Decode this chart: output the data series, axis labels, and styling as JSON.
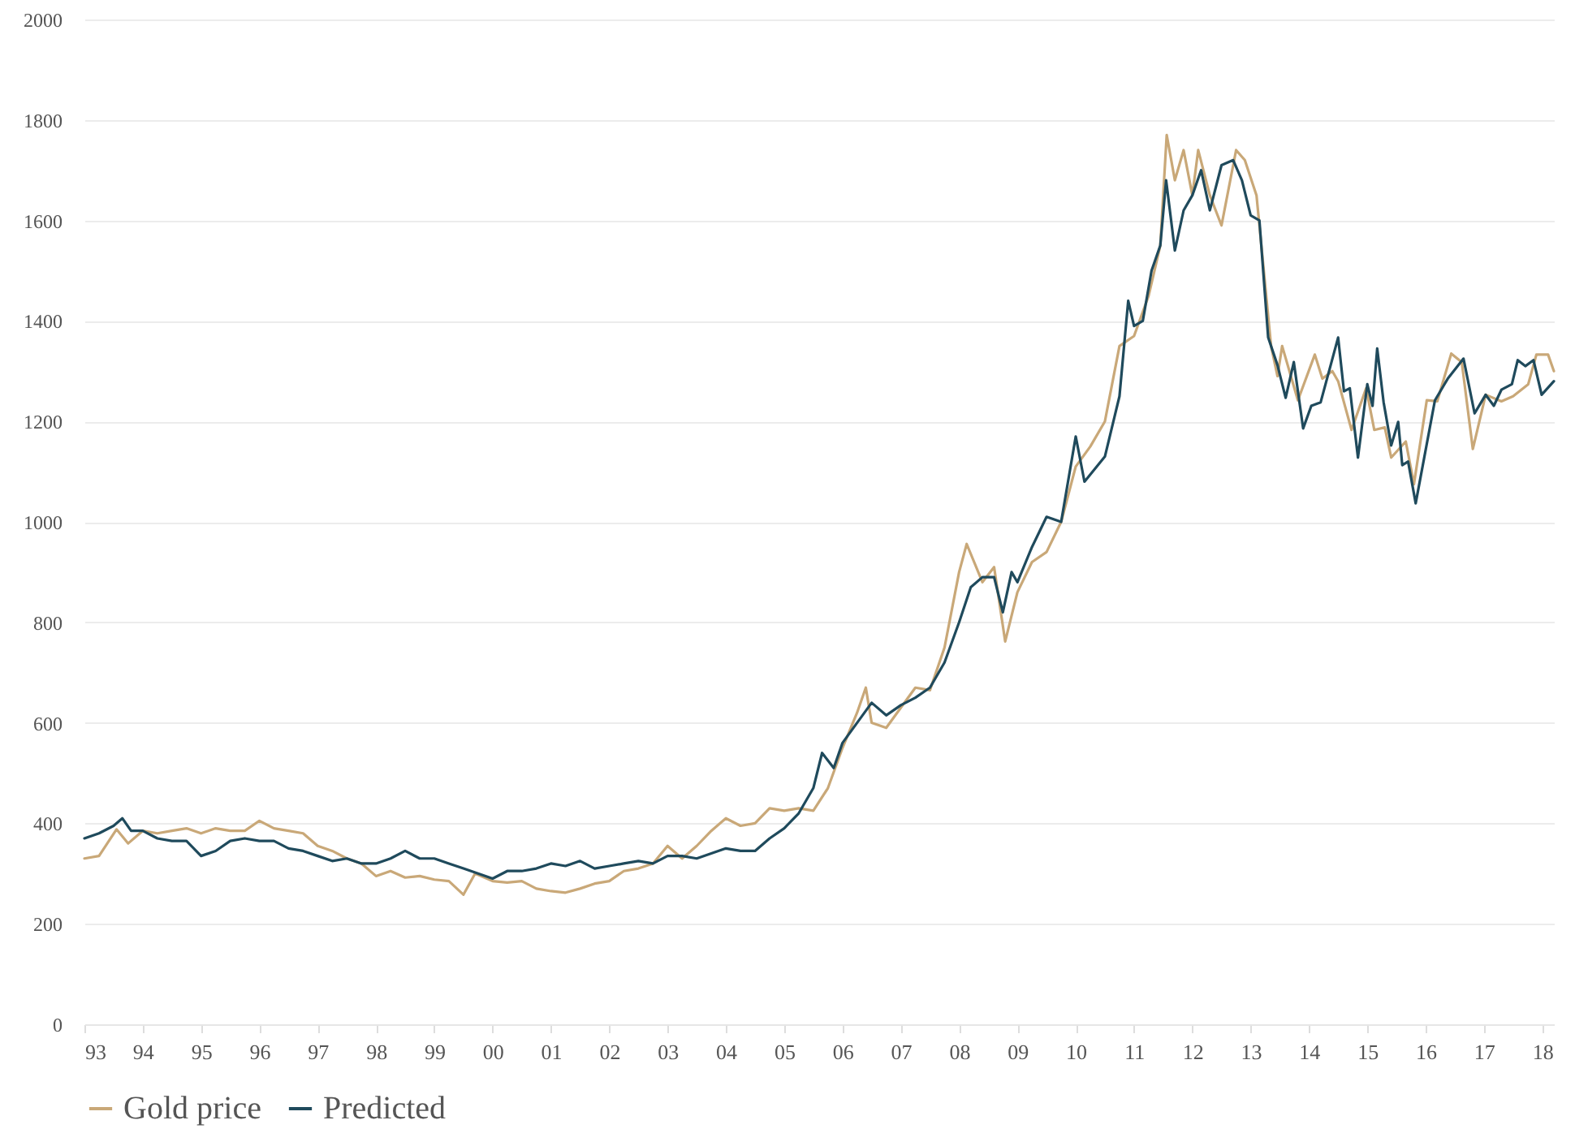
{
  "chart_data": {
    "type": "line",
    "xlim": [
      1993,
      2018.2
    ],
    "xticks": [
      {
        "value": 1993,
        "label": "93"
      },
      {
        "value": 1994,
        "label": "94"
      },
      {
        "value": 1995,
        "label": "95"
      },
      {
        "value": 1996,
        "label": "96"
      },
      {
        "value": 1997,
        "label": "97"
      },
      {
        "value": 1998,
        "label": "98"
      },
      {
        "value": 1999,
        "label": "99"
      },
      {
        "value": 2000,
        "label": "00"
      },
      {
        "value": 2001,
        "label": "01"
      },
      {
        "value": 2002,
        "label": "02"
      },
      {
        "value": 2003,
        "label": "03"
      },
      {
        "value": 2004,
        "label": "04"
      },
      {
        "value": 2005,
        "label": "05"
      },
      {
        "value": 2006,
        "label": "06"
      },
      {
        "value": 2007,
        "label": "07"
      },
      {
        "value": 2008,
        "label": "08"
      },
      {
        "value": 2009,
        "label": "09"
      },
      {
        "value": 2010,
        "label": "10"
      },
      {
        "value": 2011,
        "label": "11"
      },
      {
        "value": 2012,
        "label": "12"
      },
      {
        "value": 2013,
        "label": "13"
      },
      {
        "value": 2014,
        "label": "14"
      },
      {
        "value": 2015,
        "label": "15"
      },
      {
        "value": 2016,
        "label": "16"
      },
      {
        "value": 2017,
        "label": "17"
      },
      {
        "value": 2018,
        "label": "18"
      }
    ],
    "ylim": [
      0,
      2000
    ],
    "yticks": [
      0,
      200,
      400,
      600,
      800,
      1000,
      1200,
      1400,
      1600,
      1800,
      2000
    ],
    "grid": "y",
    "legend": "bottom",
    "marker": "none",
    "line_style": "solid",
    "series": [
      {
        "name": "Gold price",
        "color": "#c9a878",
        "x": [
          1993.0,
          1993.25,
          1993.55,
          1993.75,
          1994.0,
          1994.25,
          1994.5,
          1994.75,
          1995.0,
          1995.25,
          1995.5,
          1995.75,
          1996.0,
          1996.25,
          1996.5,
          1996.75,
          1997.0,
          1997.25,
          1997.5,
          1997.75,
          1998.0,
          1998.25,
          1998.5,
          1998.75,
          1999.0,
          1999.25,
          1999.5,
          1999.7,
          2000.0,
          2000.25,
          2000.5,
          2000.75,
          2001.0,
          2001.25,
          2001.5,
          2001.75,
          2002.0,
          2002.25,
          2002.5,
          2002.75,
          2003.0,
          2003.25,
          2003.5,
          2003.75,
          2004.0,
          2004.25,
          2004.5,
          2004.75,
          2005.0,
          2005.25,
          2005.5,
          2005.75,
          2006.0,
          2006.25,
          2006.4,
          2006.5,
          2006.75,
          2007.0,
          2007.25,
          2007.5,
          2007.75,
          2008.0,
          2008.13,
          2008.4,
          2008.6,
          2008.79,
          2009.0,
          2009.25,
          2009.5,
          2009.75,
          2010.0,
          2010.25,
          2010.5,
          2010.75,
          2011.0,
          2011.25,
          2011.45,
          2011.56,
          2011.7,
          2011.85,
          2012.0,
          2012.1,
          2012.3,
          2012.5,
          2012.75,
          2012.9,
          2013.1,
          2013.35,
          2013.46,
          2013.54,
          2013.81,
          2014.1,
          2014.23,
          2014.4,
          2014.5,
          2014.73,
          2014.98,
          2015.12,
          2015.3,
          2015.41,
          2015.66,
          2015.8,
          2016.02,
          2016.2,
          2016.44,
          2016.62,
          2016.81,
          2017.03,
          2017.3,
          2017.5,
          2017.76,
          2017.9,
          2018.1,
          2018.2
        ],
        "values": [
          330,
          335,
          388,
          360,
          385,
          380,
          385,
          390,
          380,
          390,
          385,
          385,
          405,
          390,
          385,
          380,
          355,
          345,
          330,
          320,
          295,
          305,
          292,
          295,
          288,
          285,
          258,
          300,
          285,
          282,
          285,
          270,
          265,
          262,
          270,
          280,
          285,
          305,
          310,
          320,
          355,
          330,
          355,
          385,
          410,
          395,
          400,
          430,
          425,
          430,
          425,
          470,
          550,
          620,
          670,
          600,
          590,
          630,
          670,
          665,
          750,
          900,
          956,
          880,
          910,
          762,
          860,
          920,
          940,
          1000,
          1110,
          1150,
          1200,
          1350,
          1370,
          1450,
          1550,
          1770,
          1680,
          1740,
          1650,
          1740,
          1650,
          1590,
          1740,
          1720,
          1650,
          1350,
          1290,
          1350,
          1242,
          1333,
          1285,
          1300,
          1280,
          1183,
          1266,
          1183,
          1188,
          1128,
          1160,
          1075,
          1242,
          1240,
          1335,
          1318,
          1145,
          1253,
          1240,
          1250,
          1274,
          1333,
          1333,
          1300
        ]
      },
      {
        "name": "Predicted",
        "color": "#1f4a5c",
        "x": [
          1993.0,
          1993.25,
          1993.5,
          1993.65,
          1993.8,
          1994.0,
          1994.25,
          1994.5,
          1994.75,
          1995.0,
          1995.25,
          1995.5,
          1995.75,
          1996.0,
          1996.25,
          1996.5,
          1996.75,
          1997.0,
          1997.25,
          1997.5,
          1997.75,
          1998.0,
          1998.25,
          1998.5,
          1998.75,
          1999.0,
          1999.25,
          1999.5,
          1999.75,
          2000.0,
          2000.25,
          2000.5,
          2000.75,
          2001.0,
          2001.25,
          2001.5,
          2001.75,
          2002.0,
          2002.25,
          2002.5,
          2002.75,
          2003.0,
          2003.25,
          2003.5,
          2003.75,
          2004.0,
          2004.25,
          2004.5,
          2004.75,
          2005.0,
          2005.25,
          2005.5,
          2005.65,
          2005.85,
          2006.0,
          2006.25,
          2006.5,
          2006.75,
          2007.0,
          2007.25,
          2007.5,
          2007.75,
          2008.0,
          2008.2,
          2008.4,
          2008.6,
          2008.75,
          2008.9,
          2009.0,
          2009.25,
          2009.5,
          2009.75,
          2010.0,
          2010.15,
          2010.5,
          2010.75,
          2010.9,
          2011.0,
          2011.15,
          2011.3,
          2011.45,
          2011.55,
          2011.7,
          2011.85,
          2012.0,
          2012.15,
          2012.3,
          2012.5,
          2012.7,
          2012.85,
          2013.0,
          2013.15,
          2013.3,
          2013.46,
          2013.6,
          2013.74,
          2013.9,
          2014.04,
          2014.2,
          2014.5,
          2014.6,
          2014.7,
          2014.84,
          2015.0,
          2015.09,
          2015.17,
          2015.28,
          2015.41,
          2015.53,
          2015.6,
          2015.7,
          2015.83,
          2016.16,
          2016.38,
          2016.65,
          2016.84,
          2017.03,
          2017.17,
          2017.3,
          2017.48,
          2017.58,
          2017.71,
          2017.85,
          2017.99,
          2018.2
        ],
        "values": [
          370,
          380,
          395,
          410,
          385,
          385,
          370,
          365,
          365,
          335,
          345,
          365,
          370,
          365,
          365,
          350,
          345,
          335,
          325,
          330,
          320,
          320,
          330,
          345,
          330,
          330,
          320,
          310,
          300,
          290,
          305,
          305,
          310,
          320,
          315,
          325,
          310,
          315,
          320,
          325,
          320,
          335,
          335,
          330,
          340,
          350,
          345,
          345,
          370,
          390,
          420,
          470,
          540,
          510,
          560,
          600,
          640,
          615,
          635,
          650,
          670,
          720,
          800,
          870,
          890,
          890,
          820,
          900,
          880,
          950,
          1010,
          1000,
          1170,
          1080,
          1130,
          1250,
          1440,
          1390,
          1400,
          1500,
          1550,
          1680,
          1540,
          1620,
          1650,
          1700,
          1620,
          1710,
          1720,
          1680,
          1610,
          1600,
          1367,
          1312,
          1247,
          1318,
          1186,
          1231,
          1238,
          1367,
          1260,
          1266,
          1128,
          1274,
          1231,
          1345,
          1238,
          1152,
          1199,
          1113,
          1120,
          1037,
          1242,
          1285,
          1325,
          1216,
          1253,
          1231,
          1263,
          1274,
          1322,
          1310,
          1322,
          1253,
          1280
        ]
      }
    ]
  }
}
